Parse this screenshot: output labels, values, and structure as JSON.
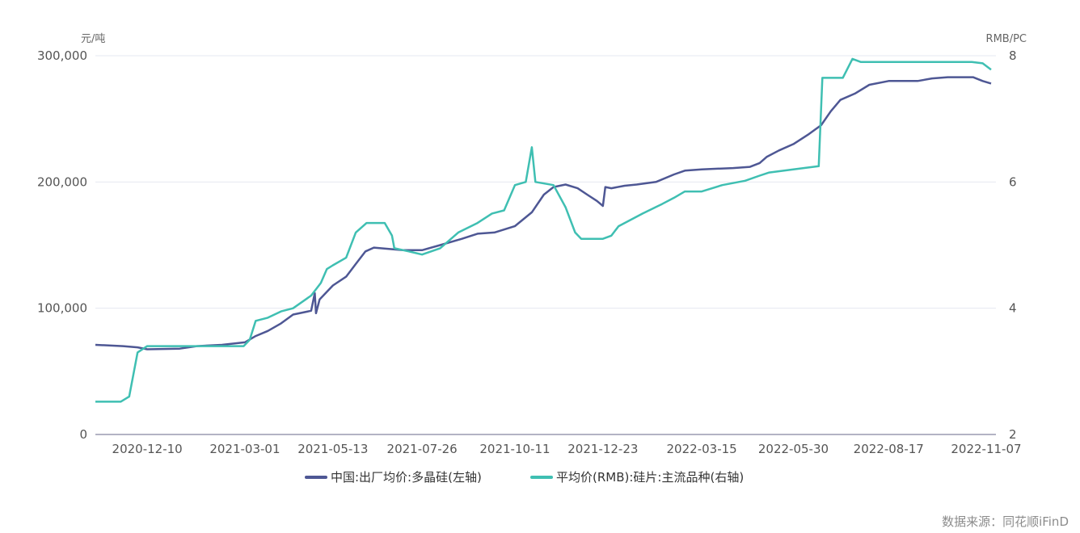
{
  "chart_data": {
    "type": "line",
    "left_axis": {
      "unit": "元/吨",
      "min": 0,
      "max": 300000,
      "ticks": [
        0,
        100000,
        200000,
        300000
      ],
      "tick_labels": [
        "0",
        "100,000",
        "200,000",
        "300,000"
      ]
    },
    "right_axis": {
      "unit": "RMB/PC",
      "min": 2,
      "max": 8,
      "ticks": [
        2,
        4,
        6,
        8
      ],
      "tick_labels": [
        "2",
        "4",
        "6",
        "8"
      ]
    },
    "x_axis": {
      "start": "2020-10-28",
      "end": "2022-11-14",
      "tick_labels": [
        "2020-12-10",
        "2021-03-01",
        "2021-05-13",
        "2021-07-26",
        "2021-10-11",
        "2021-12-23",
        "2022-03-15",
        "2022-05-30",
        "2022-08-17",
        "2022-11-07"
      ]
    },
    "grid": true,
    "legend_position": "bottom",
    "series": [
      {
        "name": "中国:出厂均价:多晶硅(左轴)",
        "axis": "left",
        "color": "#4e5794",
        "points": [
          [
            "2020-10-28",
            71000
          ],
          [
            "2020-11-20",
            70000
          ],
          [
            "2020-12-02",
            69000
          ],
          [
            "2020-12-10",
            67500
          ],
          [
            "2021-01-06",
            68000
          ],
          [
            "2021-01-20",
            70000
          ],
          [
            "2021-02-10",
            71000
          ],
          [
            "2021-03-01",
            73000
          ],
          [
            "2021-03-10",
            78000
          ],
          [
            "2021-03-20",
            82000
          ],
          [
            "2021-03-31",
            88000
          ],
          [
            "2021-04-10",
            95000
          ],
          [
            "2021-04-25",
            98000
          ],
          [
            "2021-04-28",
            112000
          ],
          [
            "2021-04-29",
            96000
          ],
          [
            "2021-05-02",
            107000
          ],
          [
            "2021-05-13",
            118000
          ],
          [
            "2021-05-24",
            125000
          ],
          [
            "2021-06-01",
            135000
          ],
          [
            "2021-06-09",
            145000
          ],
          [
            "2021-06-16",
            148000
          ],
          [
            "2021-07-10",
            146000
          ],
          [
            "2021-07-26",
            146000
          ],
          [
            "2021-08-10",
            150000
          ],
          [
            "2021-08-28",
            155000
          ],
          [
            "2021-09-10",
            159000
          ],
          [
            "2021-09-24",
            160000
          ],
          [
            "2021-10-11",
            165000
          ],
          [
            "2021-10-25",
            176000
          ],
          [
            "2021-11-04",
            190000
          ],
          [
            "2021-11-12",
            196000
          ],
          [
            "2021-11-22",
            198000
          ],
          [
            "2021-12-02",
            195000
          ],
          [
            "2021-12-10",
            190000
          ],
          [
            "2021-12-18",
            185000
          ],
          [
            "2021-12-23",
            181000
          ],
          [
            "2021-12-25",
            196000
          ],
          [
            "2021-12-30",
            195000
          ],
          [
            "2022-01-10",
            197000
          ],
          [
            "2022-01-20",
            198000
          ],
          [
            "2022-02-05",
            200000
          ],
          [
            "2022-02-20",
            206000
          ],
          [
            "2022-03-01",
            209000
          ],
          [
            "2022-03-15",
            210000
          ],
          [
            "2022-04-10",
            211000
          ],
          [
            "2022-04-24",
            212000
          ],
          [
            "2022-05-02",
            215000
          ],
          [
            "2022-05-08",
            220000
          ],
          [
            "2022-05-18",
            225000
          ],
          [
            "2022-05-30",
            230000
          ],
          [
            "2022-06-12",
            238000
          ],
          [
            "2022-06-22",
            245000
          ],
          [
            "2022-06-30",
            256000
          ],
          [
            "2022-07-08",
            265000
          ],
          [
            "2022-07-20",
            270000
          ],
          [
            "2022-08-01",
            277000
          ],
          [
            "2022-08-17",
            280000
          ],
          [
            "2022-09-10",
            280000
          ],
          [
            "2022-09-22",
            282000
          ],
          [
            "2022-10-05",
            283000
          ],
          [
            "2022-10-26",
            283000
          ],
          [
            "2022-11-03",
            280000
          ],
          [
            "2022-11-10",
            278000
          ]
        ]
      },
      {
        "name": "平均价(RMB):硅片:主流品种(右轴)",
        "axis": "right",
        "color": "#3fbfb2",
        "points": [
          [
            "2020-10-28",
            2.52
          ],
          [
            "2020-11-18",
            2.52
          ],
          [
            "2020-11-25",
            2.6
          ],
          [
            "2020-12-02",
            3.3
          ],
          [
            "2020-12-10",
            3.4
          ],
          [
            "2021-02-28",
            3.4
          ],
          [
            "2021-03-05",
            3.5
          ],
          [
            "2021-03-10",
            3.8
          ],
          [
            "2021-03-20",
            3.85
          ],
          [
            "2021-03-31",
            3.95
          ],
          [
            "2021-04-10",
            4.0
          ],
          [
            "2021-04-25",
            4.2
          ],
          [
            "2021-05-03",
            4.4
          ],
          [
            "2021-05-08",
            4.62
          ],
          [
            "2021-05-13",
            4.68
          ],
          [
            "2021-05-24",
            4.8
          ],
          [
            "2021-06-01",
            5.2
          ],
          [
            "2021-06-10",
            5.35
          ],
          [
            "2021-06-25",
            5.35
          ],
          [
            "2021-07-01",
            5.15
          ],
          [
            "2021-07-03",
            4.95
          ],
          [
            "2021-07-15",
            4.9
          ],
          [
            "2021-07-26",
            4.85
          ],
          [
            "2021-08-10",
            4.95
          ],
          [
            "2021-08-25",
            5.2
          ],
          [
            "2021-09-10",
            5.35
          ],
          [
            "2021-09-22",
            5.5
          ],
          [
            "2021-10-02",
            5.55
          ],
          [
            "2021-10-11",
            5.95
          ],
          [
            "2021-10-20",
            6.0
          ],
          [
            "2021-10-25",
            6.55
          ],
          [
            "2021-10-28",
            6.0
          ],
          [
            "2021-11-12",
            5.95
          ],
          [
            "2021-11-22",
            5.6
          ],
          [
            "2021-11-30",
            5.2
          ],
          [
            "2021-12-05",
            5.1
          ],
          [
            "2021-12-23",
            5.1
          ],
          [
            "2021-12-30",
            5.15
          ],
          [
            "2022-01-05",
            5.3
          ],
          [
            "2022-01-25",
            5.5
          ],
          [
            "2022-02-10",
            5.65
          ],
          [
            "2022-02-20",
            5.75
          ],
          [
            "2022-03-01",
            5.85
          ],
          [
            "2022-03-15",
            5.85
          ],
          [
            "2022-04-01",
            5.95
          ],
          [
            "2022-04-20",
            6.02
          ],
          [
            "2022-05-02",
            6.1
          ],
          [
            "2022-05-10",
            6.15
          ],
          [
            "2022-05-30",
            6.2
          ],
          [
            "2022-06-20",
            6.25
          ],
          [
            "2022-06-23",
            7.65
          ],
          [
            "2022-07-10",
            7.65
          ],
          [
            "2022-07-18",
            7.95
          ],
          [
            "2022-07-25",
            7.9
          ],
          [
            "2022-08-17",
            7.9
          ],
          [
            "2022-10-25",
            7.9
          ],
          [
            "2022-11-03",
            7.88
          ],
          [
            "2022-11-10",
            7.78
          ]
        ]
      }
    ]
  },
  "source": "数据来源：同花顺iFinD"
}
